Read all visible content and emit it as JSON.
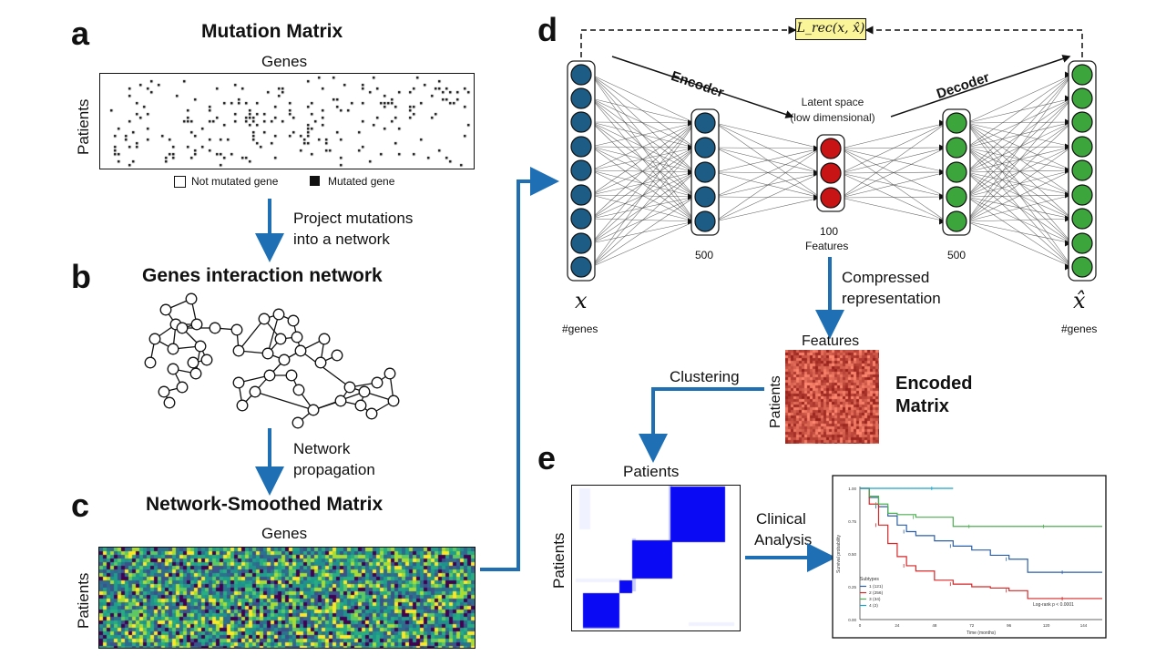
{
  "panels": {
    "a": {
      "letter": "a",
      "title": "Mutation Matrix",
      "x_label": "Genes",
      "y_label": "Patients",
      "legend_not_mutated": "Not mutated gene",
      "legend_mutated": "Mutated gene"
    },
    "b": {
      "letter": "b",
      "title": "Genes interaction network",
      "arrow_ab_label_line1": "Project mutations",
      "arrow_ab_label_line2": "into a network"
    },
    "c": {
      "letter": "c",
      "title": "Network-Smoothed Matrix",
      "x_label": "Genes",
      "y_label": "Patients",
      "arrow_bc_label_line1": "Network",
      "arrow_bc_label_line2": "propagation"
    },
    "d": {
      "letter": "d",
      "loss_label": "L_rec(x, x̂)",
      "encoder_label": "Encoder",
      "decoder_label": "Decoder",
      "latent_line1": "Latent space",
      "latent_line2": "(low dimensional)",
      "input_symbol": "x",
      "input_caption": "#genes",
      "output_symbol": "x̂",
      "output_caption": "#genes",
      "hidden1_size": "500",
      "latent_size": "100",
      "latent_caption": "Features",
      "hidden2_size": "500",
      "compress_line1": "Compressed",
      "compress_line2": "representation",
      "encoded_x_label": "Features",
      "encoded_y_label": "Patients",
      "encoded_title_line1": "Encoded",
      "encoded_title_line2": "Matrix",
      "clustering_label": "Clustering"
    },
    "e": {
      "letter": "e",
      "consensus_x_label": "Patients",
      "consensus_y_label": "Patients",
      "clinical_line1": "Clinical",
      "clinical_line2": "Analysis"
    }
  },
  "survival_plot": {
    "y_label": "Survival probability",
    "x_label": "Time (months)",
    "y_ticks": [
      "1.00",
      "0.75",
      "0.50",
      "0.25",
      "0.00"
    ],
    "x_ticks": [
      "0",
      "24",
      "48",
      "72",
      "96",
      "120",
      "144"
    ],
    "legend_title": "Subtypes",
    "pvalue_text": "Log-rank   p < 0.0001",
    "colors": {
      "s1": "#2b5fa8",
      "s2": "#d62728",
      "s3": "#4caf50",
      "s4": "#17a2c8"
    }
  },
  "chart_data": {
    "type": "line",
    "title": "",
    "xlabel": "Time (months)",
    "ylabel": "Survival probability",
    "xlim": [
      0,
      156
    ],
    "ylim": [
      0,
      1
    ],
    "series": [
      {
        "name": "1 (121)",
        "x": [
          0,
          6,
          12,
          18,
          24,
          30,
          36,
          48,
          60,
          72,
          84,
          96,
          108,
          120,
          132,
          144,
          156
        ],
        "values": [
          1.0,
          0.93,
          0.86,
          0.79,
          0.72,
          0.67,
          0.64,
          0.6,
          0.56,
          0.53,
          0.49,
          0.46,
          0.36,
          0.36,
          0.36,
          0.36,
          0.36
        ]
      },
      {
        "name": "2 (256)",
        "x": [
          0,
          6,
          12,
          18,
          24,
          30,
          36,
          48,
          60,
          72,
          84,
          96,
          108,
          120,
          132,
          144,
          156
        ],
        "values": [
          1.0,
          0.88,
          0.72,
          0.58,
          0.48,
          0.41,
          0.37,
          0.3,
          0.27,
          0.25,
          0.24,
          0.22,
          0.16,
          0.16,
          0.16,
          0.16,
          0.16
        ]
      },
      {
        "name": "3 (34)",
        "x": [
          0,
          6,
          12,
          18,
          24,
          36,
          48,
          60,
          72,
          84,
          96,
          120,
          156
        ],
        "values": [
          1.0,
          0.94,
          0.88,
          0.81,
          0.8,
          0.78,
          0.78,
          0.71,
          0.71,
          0.71,
          0.71,
          0.71,
          0.71
        ]
      },
      {
        "name": "4 (2)",
        "x": [
          0,
          24,
          48,
          60
        ],
        "values": [
          1.0,
          1.0,
          1.0,
          1.0
        ]
      }
    ]
  }
}
